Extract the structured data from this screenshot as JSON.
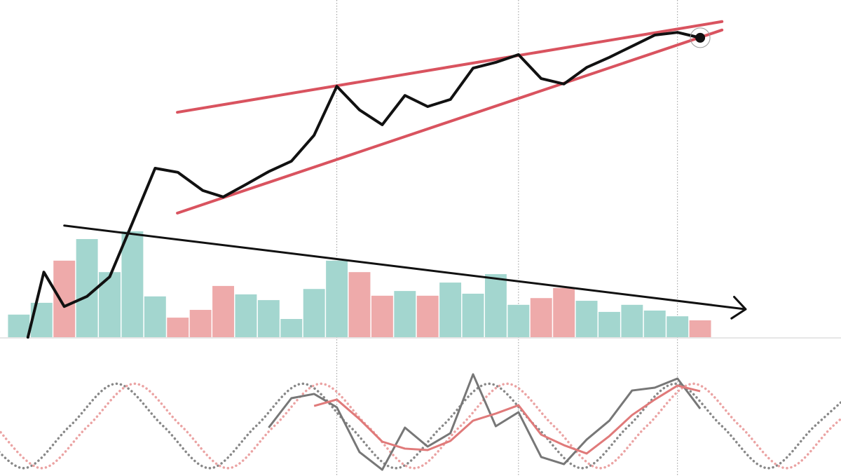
{
  "chart_data": {
    "type": "line",
    "xlim": [
      -0.83,
      36.2
    ],
    "ylim": [
      0,
      100
    ],
    "price": {
      "color": "#111111",
      "x": [
        0.4,
        1.1,
        2.0,
        3.0,
        4.0,
        5.0,
        6.0,
        7.0,
        8.1,
        9.0,
        10.0,
        11.0,
        12.0,
        13.0,
        14.0,
        15.0,
        16.0,
        17.0,
        18.0,
        19.0,
        20.0,
        21.0,
        22.0,
        23.0,
        24.0,
        25.0,
        26.0,
        27.0,
        28.0,
        29.0,
        30.0
      ],
      "values": [
        0,
        19.3,
        9.1,
        12.1,
        17.9,
        33.9,
        50.1,
        48.9,
        43.5,
        41.6,
        45.3,
        49.1,
        52.2,
        59.9,
        74.4,
        67.4,
        63.0,
        71.7,
        68.4,
        70.5,
        79.8,
        81.5,
        83.8,
        76.7,
        75.1,
        80.0,
        83.0,
        86.3,
        89.6,
        90.4,
        88.8
      ]
    },
    "volume": {
      "values": [
        6.7,
        10.2,
        22.7,
        29.1,
        19.3,
        31.4,
        12.1,
        5.8,
        8.1,
        15.2,
        12.7,
        11.0,
        5.4,
        14.3,
        22.7,
        19.3,
        12.3,
        13.7,
        12.3,
        16.2,
        12.9,
        18.7,
        9.6,
        11.6,
        14.6,
        10.8,
        7.5,
        9.6,
        7.9,
        6.2,
        5.0
      ],
      "colors": [
        "#a3d6cf",
        "#a3d6cf",
        "#eeaaaa",
        "#a3d6cf",
        "#a3d6cf",
        "#a3d6cf",
        "#a3d6cf",
        "#eeaaaa",
        "#eeaaaa",
        "#eeaaaa",
        "#a3d6cf",
        "#a3d6cf",
        "#a3d6cf",
        "#a3d6cf",
        "#a3d6cf",
        "#eeaaaa",
        "#eeaaaa",
        "#a3d6cf",
        "#eeaaaa",
        "#a3d6cf",
        "#a3d6cf",
        "#a3d6cf",
        "#a3d6cf",
        "#eeaaaa",
        "#eeaaaa",
        "#a3d6cf",
        "#a3d6cf",
        "#a3d6cf",
        "#a3d6cf",
        "#a3d6cf",
        "#eeaaaa"
      ]
    },
    "trendlines": [
      {
        "x": [
          6.98,
          30.96
        ],
        "y": [
          66.7,
          93.6
        ],
        "color": "#d9535f"
      },
      {
        "x": [
          6.98,
          30.96
        ],
        "y": [
          36.8,
          91.1
        ],
        "color": "#d9535f"
      },
      {
        "x": [
          2.0,
          32.0
        ],
        "y": [
          33.1,
          8.3
        ],
        "color": "#111111",
        "arrow": true
      }
    ],
    "vlines": [
      14,
      22,
      29
    ],
    "oscillator": {
      "ylim": [
        0,
        100
      ],
      "series": [
        {
          "color": "#888888",
          "dotted": true,
          "x": [
            -1.85,
            0.2,
            2.25,
            4.3,
            6.35,
            8.4,
            10.45,
            12.5,
            14.55,
            16.6,
            18.65,
            20.7,
            22.75,
            24.8,
            26.85,
            28.9,
            30.95,
            33.0,
            35.05,
            37.1
          ],
          "values": [
            46,
            3,
            46,
            89,
            46,
            3,
            46,
            89,
            46,
            3,
            46,
            89,
            46,
            3,
            46,
            89,
            46,
            3,
            46,
            89
          ]
        },
        {
          "color": "#eba3a3",
          "dotted": true,
          "x": [
            -1.05,
            1.0,
            3.05,
            5.1,
            7.15,
            9.2,
            11.25,
            13.3,
            15.35,
            17.4,
            19.45,
            21.5,
            23.55,
            25.6,
            27.65,
            29.7,
            31.75,
            33.8,
            35.85,
            37.9
          ],
          "values": [
            46,
            3,
            46,
            89,
            46,
            3,
            46,
            89,
            46,
            3,
            46,
            89,
            46,
            3,
            46,
            89,
            46,
            3,
            46,
            89
          ]
        },
        {
          "color": "#777777",
          "dotted": false,
          "x": [
            11,
            12,
            13,
            14,
            15,
            16,
            17,
            18,
            19,
            20,
            21,
            22,
            23,
            24,
            25,
            26,
            27,
            28,
            29,
            30
          ],
          "values": [
            44.3,
            74.3,
            78.6,
            65.0,
            19.3,
            1.4,
            44.3,
            25.0,
            38.6,
            98.6,
            45.7,
            60.0,
            14.3,
            7.1,
            32.1,
            51.4,
            82.1,
            85.0,
            94.3,
            63.6
          ]
        },
        {
          "color": "#e07a7a",
          "dotted": false,
          "x": [
            13,
            14,
            15,
            16,
            17,
            18,
            19,
            20,
            21,
            22,
            23,
            24,
            25,
            26,
            27,
            28,
            29,
            30
          ],
          "values": [
            66.4,
            72.9,
            52.9,
            30.0,
            22.9,
            21.4,
            30.7,
            51.4,
            58.6,
            67.1,
            37.1,
            26.4,
            17.9,
            35.7,
            57.1,
            72.9,
            87.1,
            81.4
          ]
        }
      ]
    }
  }
}
